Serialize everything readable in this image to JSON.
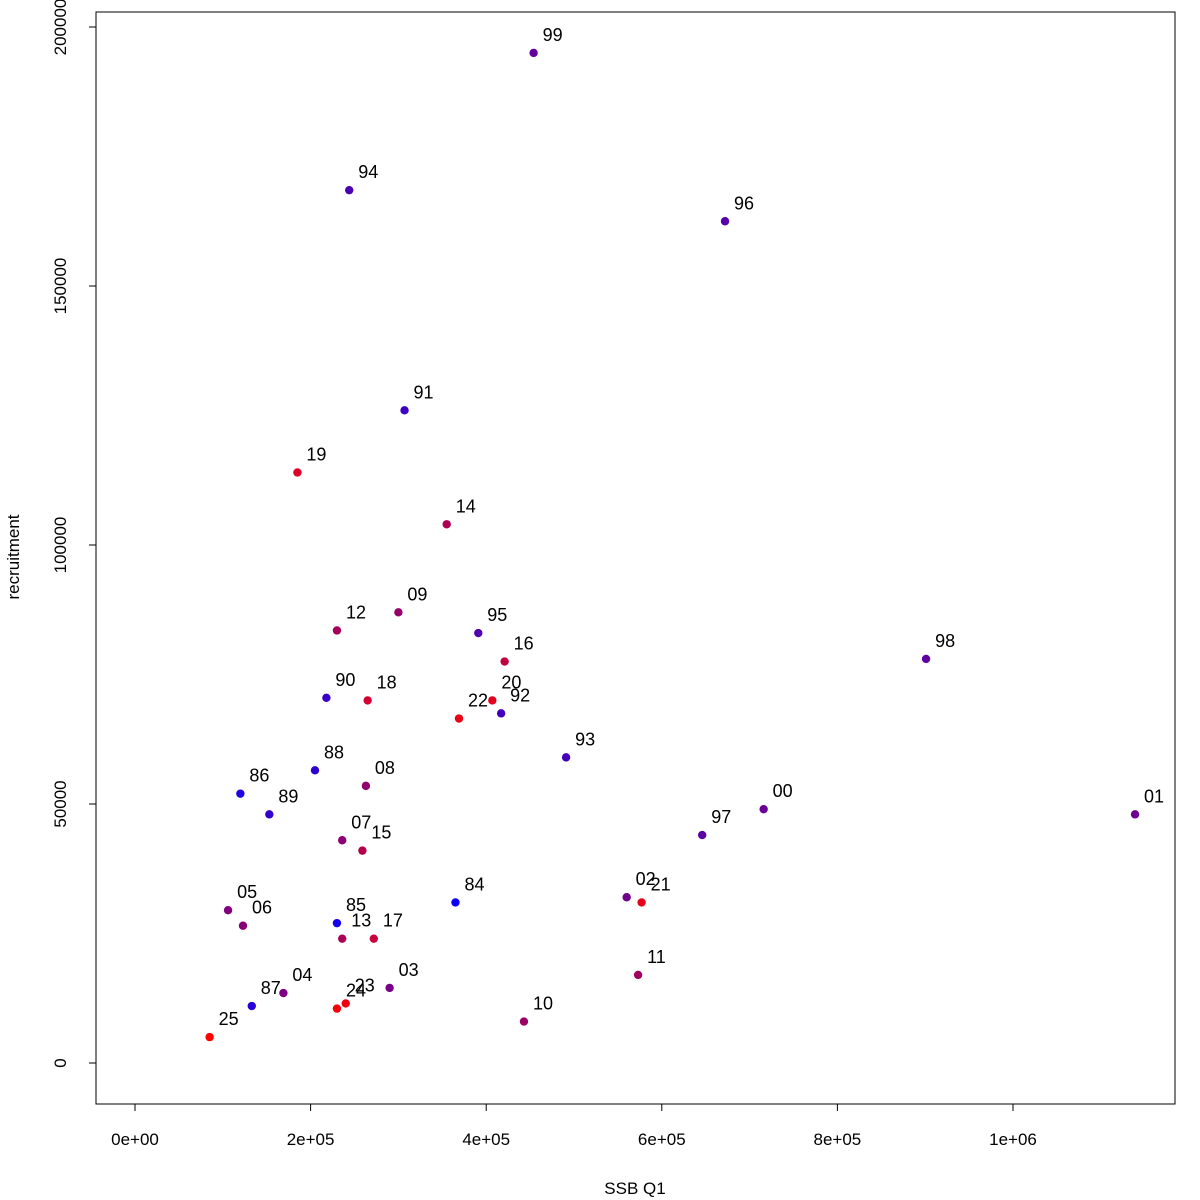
{
  "chart_data": {
    "type": "scatter",
    "title": "",
    "xlabel": "SSB Q1",
    "ylabel": "recruitment",
    "xlim": [
      -50000,
      1180000
    ],
    "ylim": [
      -8000,
      202000
    ],
    "x_ticks": [
      {
        "value": 0,
        "label": "0e+00"
      },
      {
        "value": 200000,
        "label": "2e+05"
      },
      {
        "value": 400000,
        "label": "4e+05"
      },
      {
        "value": 600000,
        "label": "6e+05"
      },
      {
        "value": 800000,
        "label": "8e+05"
      },
      {
        "value": 1000000,
        "label": "1e+06"
      }
    ],
    "y_ticks": [
      {
        "value": 0,
        "label": "0"
      },
      {
        "value": 50000,
        "label": "50000"
      },
      {
        "value": 100000,
        "label": "100000"
      },
      {
        "value": 150000,
        "label": "150000"
      },
      {
        "value": 200000,
        "label": "200000"
      }
    ],
    "color_scale": {
      "oldest": "#0000ff",
      "newest": "#ff0000"
    },
    "points": [
      {
        "label": "84",
        "x": 365000,
        "y": 31000,
        "color": "#0a00f5"
      },
      {
        "label": "85",
        "x": 230000,
        "y": 27000,
        "color": "#1400eb"
      },
      {
        "label": "86",
        "x": 120000,
        "y": 52000,
        "color": "#1e00e1"
      },
      {
        "label": "87",
        "x": 133000,
        "y": 11000,
        "color": "#2800d7"
      },
      {
        "label": "88",
        "x": 205000,
        "y": 56500,
        "color": "#2d00d2"
      },
      {
        "label": "89",
        "x": 153000,
        "y": 48000,
        "color": "#3200cd"
      },
      {
        "label": "90",
        "x": 218000,
        "y": 70500,
        "color": "#3700c8"
      },
      {
        "label": "91",
        "x": 307000,
        "y": 126000,
        "color": "#3c00c3"
      },
      {
        "label": "92",
        "x": 417000,
        "y": 67500,
        "color": "#4100be"
      },
      {
        "label": "93",
        "x": 491000,
        "y": 59000,
        "color": "#4600b9"
      },
      {
        "label": "94",
        "x": 244000,
        "y": 168500,
        "color": "#4b00b4"
      },
      {
        "label": "95",
        "x": 391000,
        "y": 83000,
        "color": "#5000af"
      },
      {
        "label": "96",
        "x": 672000,
        "y": 162500,
        "color": "#5500aa"
      },
      {
        "label": "97",
        "x": 646000,
        "y": 44000,
        "color": "#5a00a5"
      },
      {
        "label": "98",
        "x": 901000,
        "y": 78000,
        "color": "#5f00a0"
      },
      {
        "label": "99",
        "x": 454000,
        "y": 195000,
        "color": "#64009b"
      },
      {
        "label": "00",
        "x": 716000,
        "y": 49000,
        "color": "#690096"
      },
      {
        "label": "01",
        "x": 1139000,
        "y": 48000,
        "color": "#6e0091"
      },
      {
        "label": "02",
        "x": 560000,
        "y": 32000,
        "color": "#73008c"
      },
      {
        "label": "03",
        "x": 290000,
        "y": 14500,
        "color": "#780087"
      },
      {
        "label": "04",
        "x": 169000,
        "y": 13500,
        "color": "#7d0082"
      },
      {
        "label": "05",
        "x": 106000,
        "y": 29500,
        "color": "#82007d"
      },
      {
        "label": "06",
        "x": 123000,
        "y": 26500,
        "color": "#870078"
      },
      {
        "label": "07",
        "x": 236000,
        "y": 43000,
        "color": "#8c0073"
      },
      {
        "label": "08",
        "x": 263000,
        "y": 53500,
        "color": "#91006e"
      },
      {
        "label": "09",
        "x": 300000,
        "y": 87000,
        "color": "#960069"
      },
      {
        "label": "10",
        "x": 443000,
        "y": 8000,
        "color": "#9b0064"
      },
      {
        "label": "11",
        "x": 573000,
        "y": 17000,
        "color": "#a0005f"
      },
      {
        "label": "12",
        "x": 230000,
        "y": 83500,
        "color": "#a5005a"
      },
      {
        "label": "13",
        "x": 236000,
        "y": 24000,
        "color": "#aa0055"
      },
      {
        "label": "14",
        "x": 355000,
        "y": 104000,
        "color": "#af0050"
      },
      {
        "label": "15",
        "x": 259000,
        "y": 41000,
        "color": "#b4004b"
      },
      {
        "label": "16",
        "x": 421000,
        "y": 77500,
        "color": "#be0041"
      },
      {
        "label": "17",
        "x": 272000,
        "y": 24000,
        "color": "#c8003c"
      },
      {
        "label": "18",
        "x": 265000,
        "y": 70000,
        "color": "#d20032"
      },
      {
        "label": "19",
        "x": 185000,
        "y": 114000,
        "color": "#dc0028"
      },
      {
        "label": "20",
        "x": 407000,
        "y": 70000,
        "color": "#e1001e"
      },
      {
        "label": "21",
        "x": 577000,
        "y": 31000,
        "color": "#e60019"
      },
      {
        "label": "22",
        "x": 369000,
        "y": 66500,
        "color": "#eb0014"
      },
      {
        "label": "23",
        "x": 240000,
        "y": 11500,
        "color": "#f0000f"
      },
      {
        "label": "24",
        "x": 230000,
        "y": 10500,
        "color": "#f5000a"
      },
      {
        "label": "25",
        "x": 85000,
        "y": 5000,
        "color": "#ff0000"
      }
    ]
  }
}
